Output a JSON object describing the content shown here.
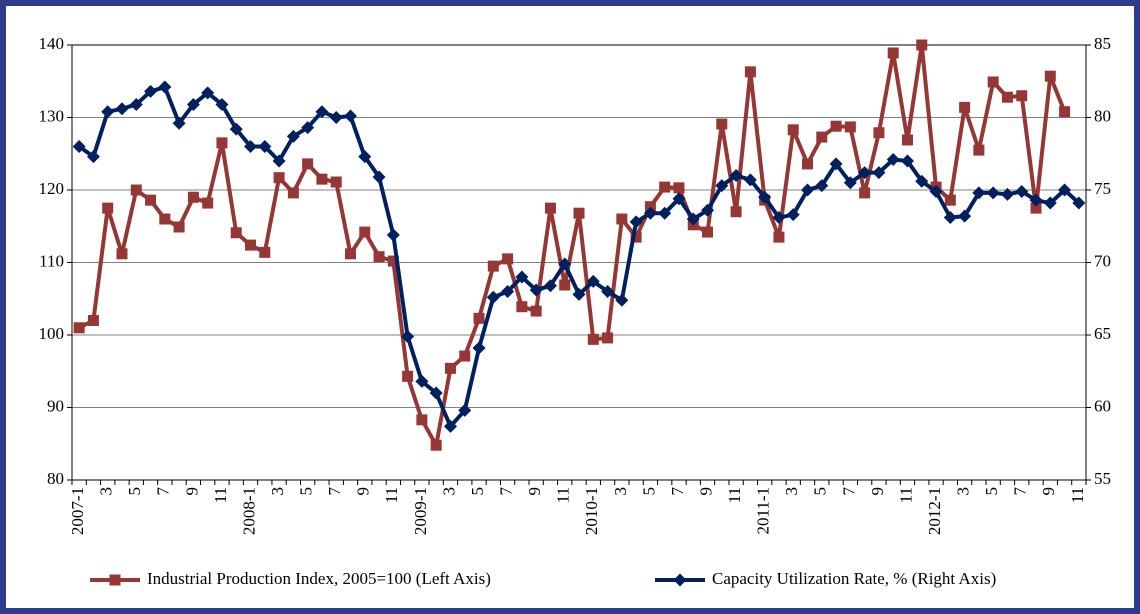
{
  "chart_data": {
    "type": "line",
    "categories": [
      "2007-1",
      null,
      "3",
      null,
      "5",
      null,
      "7",
      null,
      "9",
      null,
      "11",
      null,
      "2008-1",
      null,
      "3",
      null,
      "5",
      null,
      "7",
      null,
      "9",
      null,
      "11",
      null,
      "2009-1",
      null,
      "3",
      null,
      "5",
      null,
      "7",
      null,
      "9",
      null,
      "11",
      null,
      "2010-1",
      null,
      "3",
      null,
      "5",
      null,
      "7",
      null,
      "9",
      null,
      "11",
      null,
      "2011-1",
      null,
      "3",
      null,
      "5",
      null,
      "7",
      null,
      "9",
      null,
      "11",
      null,
      "2012-1",
      null,
      "3",
      null,
      "5",
      null,
      "7",
      null,
      "9",
      null,
      "11"
    ],
    "series": [
      {
        "name": "Industrial Production Index, 2005=100 (Left Axis)",
        "color": "#953735",
        "marker": "square",
        "values": [
          101,
          102,
          117.5,
          111.2,
          120,
          118.6,
          116,
          114.9,
          119,
          118.2,
          126.5,
          114.1,
          112.4,
          111.4,
          121.7,
          119.6,
          123.6,
          121.5,
          121.1,
          111.2,
          114.2,
          110.8,
          110.2,
          94.3,
          88.3,
          84.8,
          95.4,
          97.1,
          102.3,
          109.5,
          110.5,
          103.9,
          103.3,
          117.5,
          106.9,
          116.8,
          99.4,
          99.6,
          116,
          113.5,
          117.7,
          120.4,
          120.3,
          115.2,
          114.2,
          129.1,
          117,
          136.3,
          118.6,
          113.5,
          128.3,
          123.6,
          127.3,
          128.8,
          128.7,
          119.6,
          127.9,
          138.9,
          126.9,
          140,
          120.4,
          118.6,
          131.4,
          125.5,
          134.9,
          132.8,
          133,
          117.5,
          135.7,
          130.8,
          null
        ]
      },
      {
        "name": "Capacity Utilization Rate, % (Right Axis)",
        "color": "#002060",
        "marker": "diamond",
        "axis": "y2",
        "values": [
          78,
          77.3,
          80.4,
          80.6,
          80.9,
          81.8,
          82.1,
          79.6,
          80.9,
          81.7,
          80.9,
          79.2,
          78,
          78,
          77,
          78.7,
          79.3,
          80.4,
          80,
          80.1,
          77.3,
          75.9,
          71.9,
          64.9,
          61.8,
          61,
          58.7,
          59.8,
          64.1,
          67.6,
          68,
          69,
          68.1,
          68.4,
          69.9,
          67.8,
          68.7,
          68,
          67.4,
          72.8,
          73.4,
          73.4,
          74.4,
          73,
          73.6,
          75.3,
          76,
          75.7,
          74.5,
          73.1,
          73.3,
          75,
          75.3,
          76.8,
          75.5,
          76.2,
          76.2,
          77.1,
          77,
          75.6,
          74.9,
          73.1,
          73.2,
          74.8,
          74.8,
          74.7,
          74.9,
          74.3,
          74.1,
          75,
          74.1
        ]
      }
    ],
    "ylim": [
      80,
      140
    ],
    "yticks": [
      80,
      90,
      100,
      110,
      120,
      130,
      140
    ],
    "y2lim": [
      55,
      85
    ],
    "y2ticks": [
      55,
      60,
      65,
      70,
      75,
      80,
      85
    ],
    "grid": true,
    "legend": "bottom"
  }
}
